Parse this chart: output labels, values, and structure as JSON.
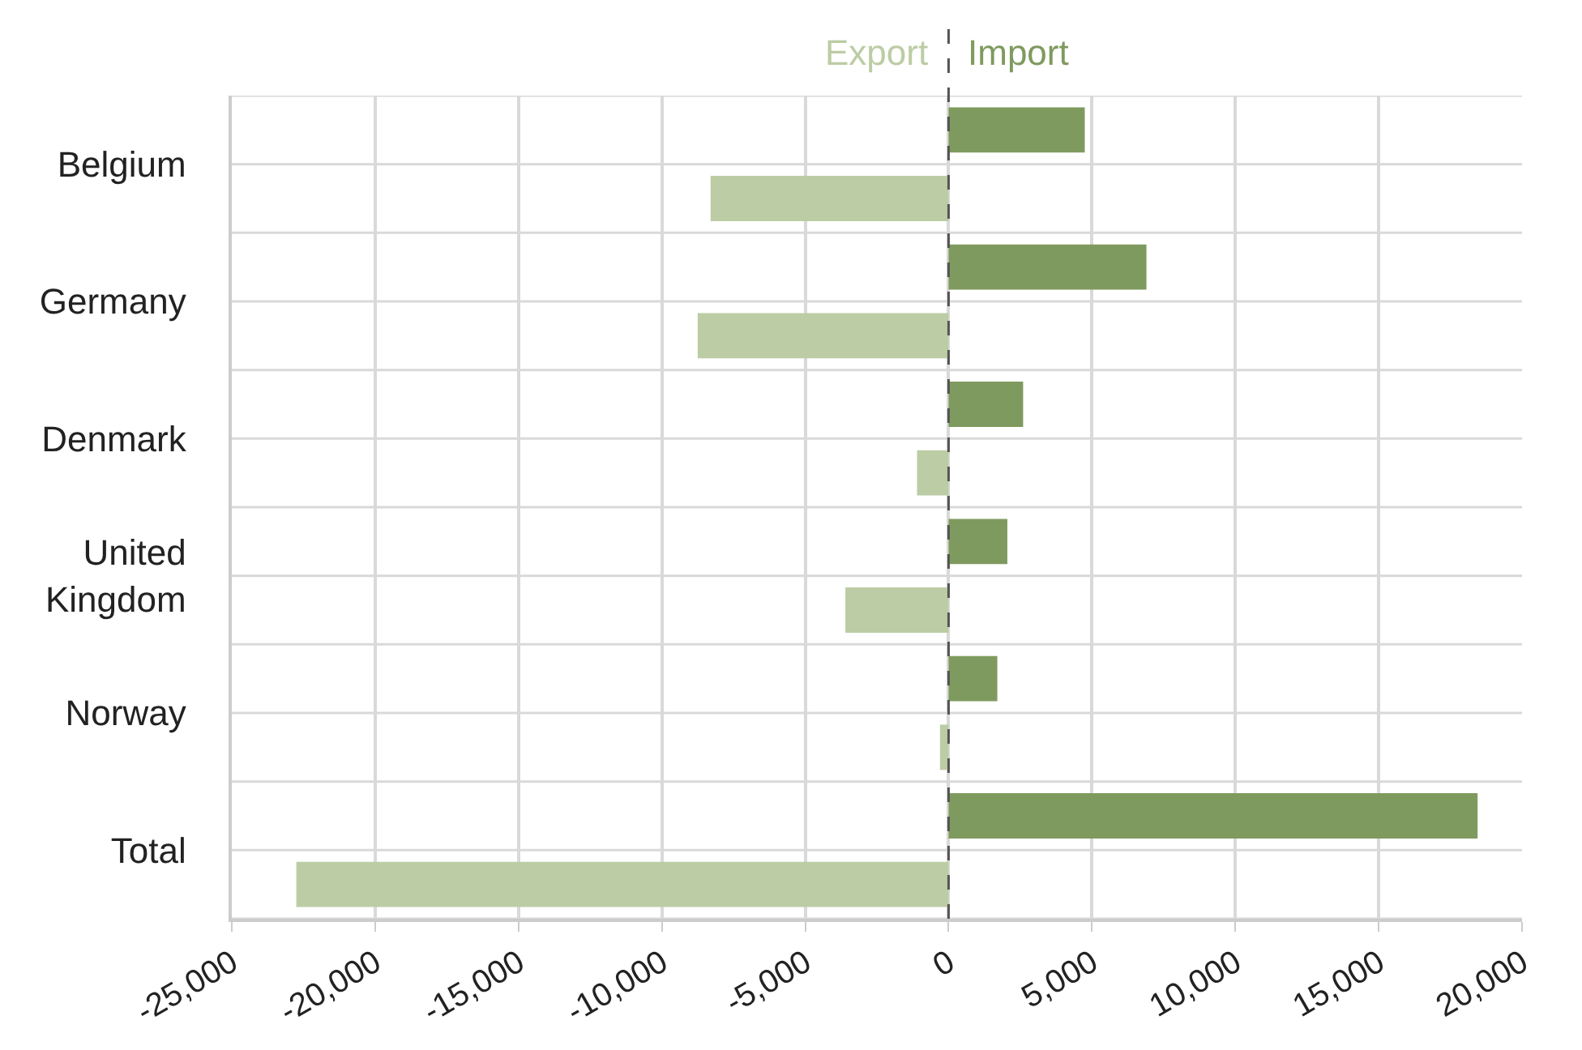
{
  "chart_data": {
    "type": "bar",
    "orientation": "horizontal",
    "categories": [
      "Belgium",
      "Germany",
      "Denmark",
      "United Kingdom",
      "Norway",
      "Total"
    ],
    "series": [
      {
        "name": "Import",
        "color": "#7f9a5e",
        "values": [
          4750,
          6900,
          2600,
          2050,
          1700,
          18450
        ]
      },
      {
        "name": "Export",
        "color": "#bccca4",
        "values": [
          -8300,
          -8750,
          -1100,
          -3600,
          -300,
          -22750
        ]
      }
    ],
    "xlim": [
      -25000,
      20000
    ],
    "xticks": [
      {
        "value": -25000,
        "label": "-25,000"
      },
      {
        "value": -20000,
        "label": "-20,000"
      },
      {
        "value": -15000,
        "label": "-15,000"
      },
      {
        "value": -10000,
        "label": "-10,000"
      },
      {
        "value": -5000,
        "label": "-5,000"
      },
      0,
      {
        "value": 5000,
        "label": "5,000"
      },
      {
        "value": 10000,
        "label": "10,000"
      },
      {
        "value": 15000,
        "label": "15,000"
      },
      {
        "value": 20000,
        "label": "20,000"
      }
    ],
    "ref_lines": [
      {
        "axis": "x",
        "value": 0,
        "color": "#555555",
        "line_style": "dashed"
      }
    ],
    "grid": true,
    "legend": false
  }
}
